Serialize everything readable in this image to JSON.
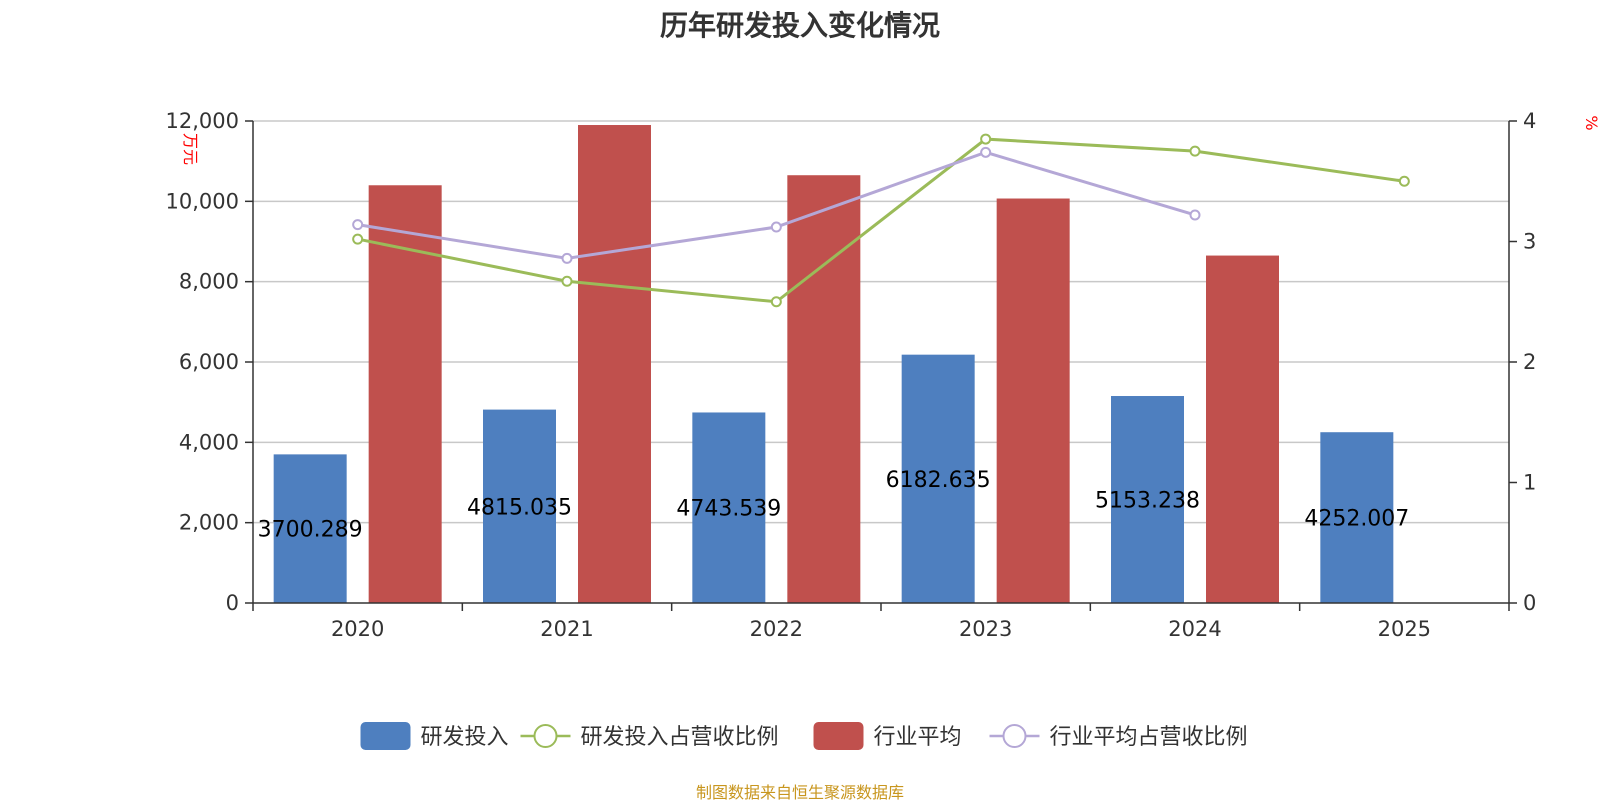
{
  "chart_data": {
    "type": "bar",
    "title": "历年研发投入变化情况",
    "categories": [
      "2020",
      "2021",
      "2022",
      "2023",
      "2024",
      "2025"
    ],
    "y_left": {
      "unit": "万元",
      "range": [
        0,
        12000
      ],
      "ticks": [
        0,
        2000,
        4000,
        6000,
        8000,
        10000,
        12000
      ],
      "tick_labels": [
        "0",
        "2,000",
        "4,000",
        "6,000",
        "8,000",
        "10,000",
        "12,000"
      ]
    },
    "y_right": {
      "unit": "%",
      "range": [
        0,
        4
      ],
      "ticks": [
        0,
        1,
        2,
        3,
        4
      ],
      "tick_labels": [
        "0",
        "1",
        "2",
        "3",
        "4"
      ]
    },
    "series": [
      {
        "name": "研发投入",
        "kind": "bar",
        "axis": "left",
        "color": "#4e7fbf",
        "values": [
          3700.289,
          4815.035,
          4743.539,
          6182.635,
          5153.238,
          4252.007
        ],
        "labels": [
          "3700.289",
          "4815.035",
          "4743.539",
          "6182.635",
          "5153.238",
          "4252.007"
        ]
      },
      {
        "name": "研发投入占营收比例",
        "kind": "line",
        "axis": "right",
        "color": "#9bbb59",
        "values": [
          3.02,
          2.67,
          2.5,
          3.85,
          3.75,
          3.5
        ]
      },
      {
        "name": "行业平均",
        "kind": "bar",
        "axis": "left",
        "color": "#c0504d",
        "values": [
          10400,
          11900,
          10650,
          10070,
          8650,
          null
        ]
      },
      {
        "name": "行业平均占营收比例",
        "kind": "line",
        "axis": "right",
        "color": "#b4a7d6",
        "values": [
          3.14,
          2.86,
          3.12,
          3.74,
          3.22,
          null
        ]
      }
    ],
    "grid": true,
    "legend_position": "bottom-center"
  },
  "source_text": "制图数据来自恒生聚源数据库"
}
